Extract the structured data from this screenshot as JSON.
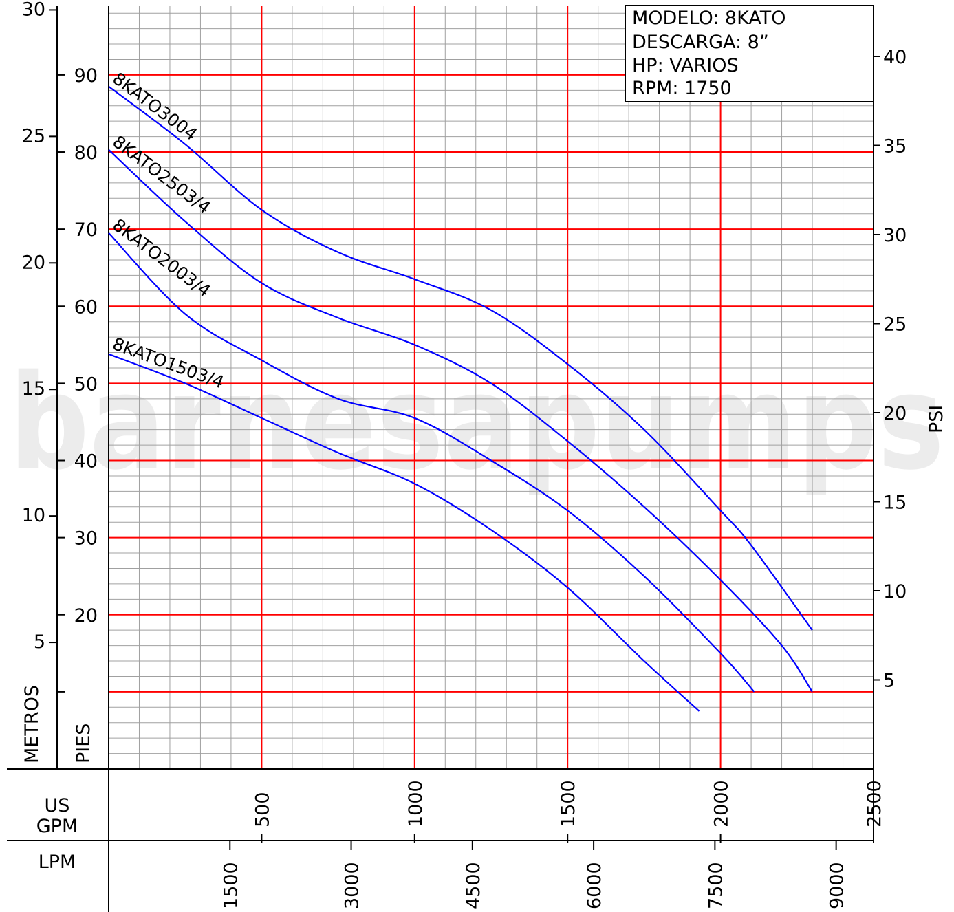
{
  "chart_data": {
    "type": "line",
    "title": "",
    "watermark": "barnesapumps",
    "info_box": {
      "model": "MODELO:  8KATO",
      "discharge": "DESCARGA:  8”",
      "hp": "HP:  VARIOS",
      "rpm": "RPM:  1750"
    },
    "x_axes": {
      "gpm": {
        "label_line1": "US",
        "label_line2": "GPM",
        "range": [
          0,
          2500
        ],
        "ticks": [
          500,
          1000,
          1500,
          2000,
          2500
        ]
      },
      "lpm": {
        "label": "LPM",
        "ticks": [
          1500,
          3000,
          4500,
          6000,
          7500,
          9000
        ]
      }
    },
    "y_axes": {
      "feet": {
        "label": "PIES",
        "range": [
          0,
          99
        ],
        "ticks": [
          20,
          30,
          40,
          50,
          60,
          70,
          80,
          90
        ]
      },
      "meters": {
        "label": "METROS",
        "ticks": [
          5,
          10,
          15,
          20,
          25,
          30
        ]
      },
      "psi": {
        "label": "PSI",
        "ticks": [
          5,
          10,
          15,
          20,
          25,
          30,
          35,
          40
        ]
      }
    },
    "grid": true,
    "colors": {
      "major_grid": "#ff0000",
      "minor_grid": "#a0a0a0",
      "curve": "#0000ff"
    },
    "series": [
      {
        "name": "8KATO3004",
        "points": [
          [
            0,
            88.5
          ],
          [
            250,
            81
          ],
          [
            500,
            72.5
          ],
          [
            750,
            67
          ],
          [
            1000,
            63.5
          ],
          [
            1250,
            59.5
          ],
          [
            1500,
            52.5
          ],
          [
            1750,
            44
          ],
          [
            2000,
            33.5
          ],
          [
            2100,
            29
          ],
          [
            2300,
            18
          ]
        ]
      },
      {
        "name": "8KATO2503/4",
        "points": [
          [
            0,
            80.3
          ],
          [
            250,
            71
          ],
          [
            500,
            63
          ],
          [
            750,
            58.5
          ],
          [
            1000,
            55
          ],
          [
            1250,
            50
          ],
          [
            1500,
            42.5
          ],
          [
            1750,
            34
          ],
          [
            2000,
            24.5
          ],
          [
            2200,
            16
          ],
          [
            2300,
            10
          ]
        ]
      },
      {
        "name": "8KATO2003/4",
        "points": [
          [
            0,
            69.5
          ],
          [
            250,
            59
          ],
          [
            500,
            53
          ],
          [
            750,
            48
          ],
          [
            1000,
            45.5
          ],
          [
            1250,
            40
          ],
          [
            1500,
            33.5
          ],
          [
            1750,
            25
          ],
          [
            2000,
            15
          ],
          [
            2110,
            10
          ]
        ]
      },
      {
        "name": "8KATO1503/4",
        "points": [
          [
            0,
            53.8
          ],
          [
            250,
            50
          ],
          [
            500,
            45.5
          ],
          [
            750,
            41
          ],
          [
            1000,
            37
          ],
          [
            1250,
            31
          ],
          [
            1500,
            23.5
          ],
          [
            1750,
            14
          ],
          [
            1930,
            7.5
          ]
        ]
      }
    ]
  }
}
